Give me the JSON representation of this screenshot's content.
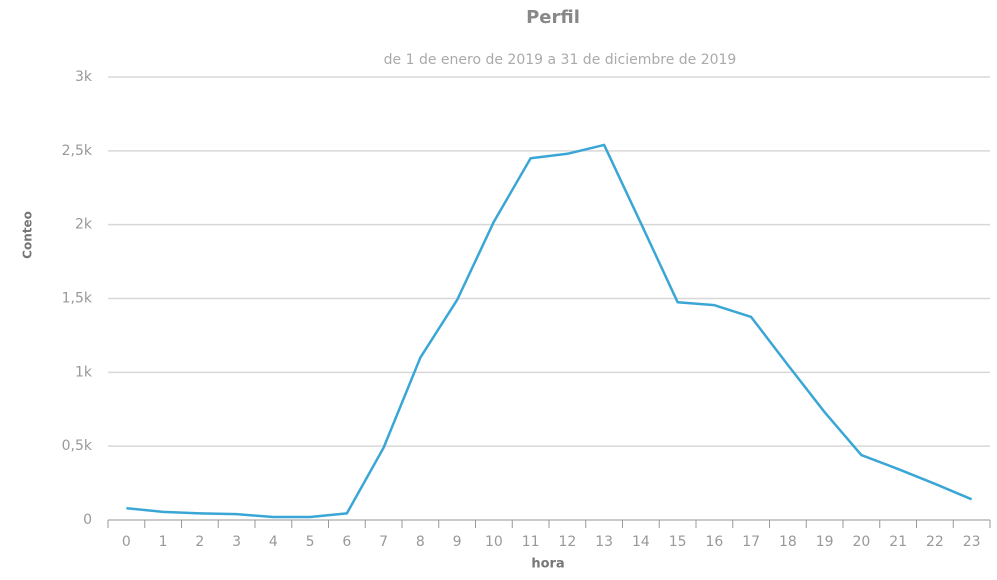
{
  "chart_data": {
    "type": "line",
    "title": "Perfil",
    "subtitle": "de 1 de enero de 2019 a 31 de diciembre de 2019",
    "x_label": "hora",
    "y_label": "Conteo",
    "categories": [
      "0",
      "1",
      "2",
      "3",
      "4",
      "5",
      "6",
      "7",
      "8",
      "9",
      "10",
      "11",
      "12",
      "13",
      "14",
      "15",
      "16",
      "17",
      "18",
      "19",
      "20",
      "21",
      "22",
      "23"
    ],
    "series": [
      {
        "name": "Conteo",
        "color": "#3aa6d6",
        "values": [
          80,
          55,
          45,
          40,
          20,
          20,
          45,
          490,
          1100,
          1490,
          2020,
          2450,
          2480,
          2540,
          2010,
          1475,
          1455,
          1375,
          1050,
          730,
          440,
          345,
          245,
          140
        ]
      }
    ],
    "ylim": [
      0,
      3000
    ],
    "yticks": [
      {
        "value": 0,
        "label": "0"
      },
      {
        "value": 500,
        "label": "0,5k"
      },
      {
        "value": 1000,
        "label": "1k"
      },
      {
        "value": 1500,
        "label": "1,5k"
      },
      {
        "value": 2000,
        "label": "2k"
      },
      {
        "value": 2500,
        "label": "2,5k"
      },
      {
        "value": 3000,
        "label": "3k"
      }
    ],
    "grid": true
  }
}
